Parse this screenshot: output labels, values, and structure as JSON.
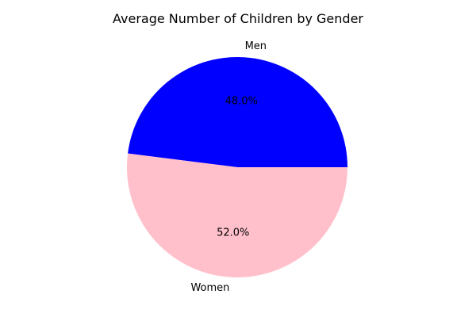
{
  "chart_data": {
    "type": "pie",
    "title": "Average Number of Children by Gender",
    "slices": [
      {
        "label": "Men",
        "value": 48.0,
        "percent_label": "48.0%",
        "color": "#0000ff"
      },
      {
        "label": "Women",
        "value": 52.0,
        "percent_label": "52.0%",
        "color": "#ffc0cb"
      }
    ],
    "start_angle_deg": 0,
    "direction": "counterclockwise"
  }
}
